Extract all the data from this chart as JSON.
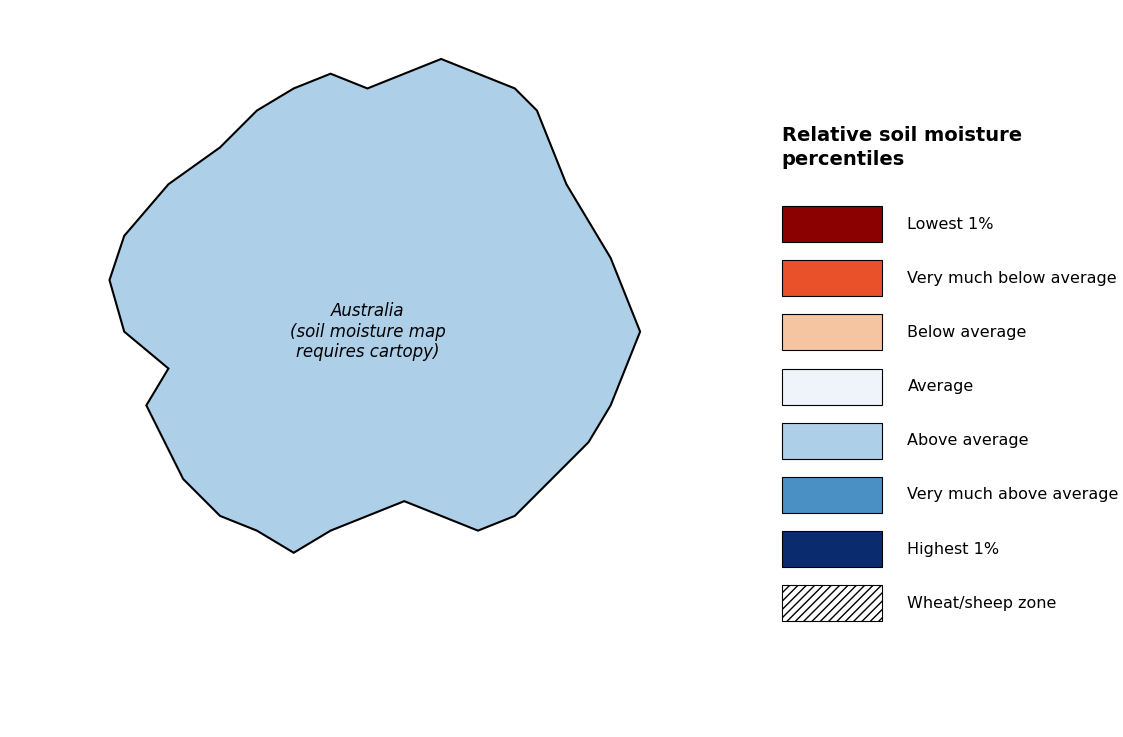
{
  "title": "",
  "legend_title": "Relative soil moisture\npercentiles",
  "legend_items": [
    {
      "label": "Lowest 1%",
      "color": "#8B0000",
      "hatch": null
    },
    {
      "label": "Very much below average",
      "color": "#E8512A",
      "hatch": null
    },
    {
      "label": "Below average",
      "color": "#F5C4A0",
      "hatch": null
    },
    {
      "label": "Average",
      "color": "#EEF4FA",
      "hatch": null
    },
    {
      "label": "Above average",
      "color": "#AECFE8",
      "hatch": null
    },
    {
      "label": "Very much above average",
      "color": "#4A90C4",
      "hatch": null
    },
    {
      "label": "Highest 1%",
      "color": "#0A2B6E",
      "hatch": null
    },
    {
      "label": "Wheat/sheep zone",
      "color": "#FFFFFF",
      "hatch": "////"
    }
  ],
  "background_color": "#FFFFFF",
  "map_extent": [
    113,
    154,
    -44,
    -10
  ],
  "figsize": [
    11.23,
    7.37
  ],
  "dpi": 100
}
